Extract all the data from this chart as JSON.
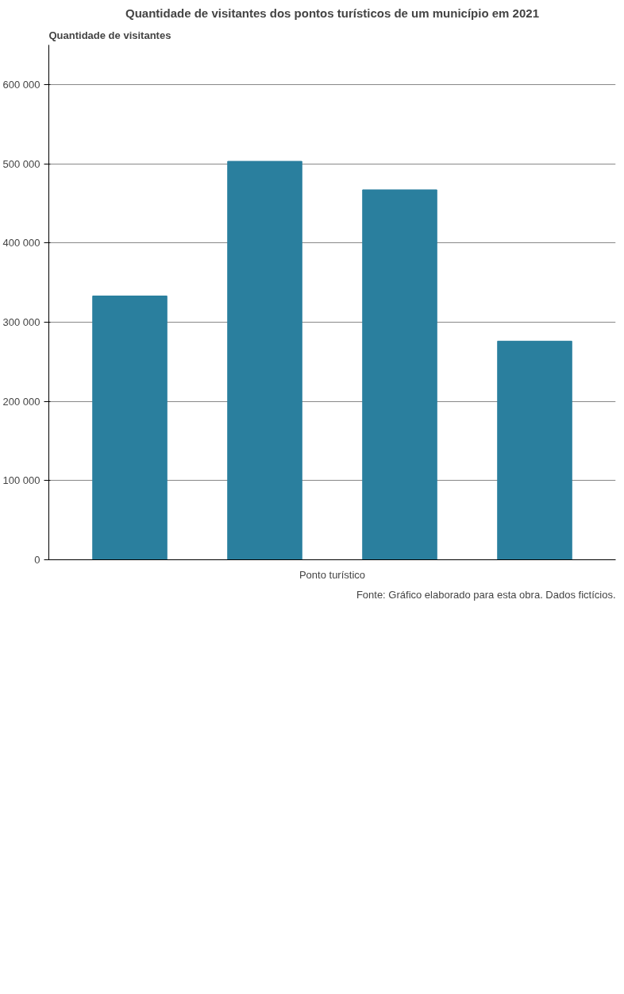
{
  "chart_data": {
    "type": "bar",
    "title": "Quantidade de visitantes dos pontos turísticos de um município em 2021",
    "ylabel": "Quantidade de visitantes",
    "xlabel": "Ponto turístico",
    "categories": [
      null,
      null,
      null,
      null
    ],
    "values": [
      333000,
      503000,
      467000,
      276000
    ],
    "color": "#2a7f9e",
    "ylim": [
      0,
      650000
    ],
    "yticks": [
      0,
      {
        "value": 100000,
        "label": "100 000"
      },
      {
        "value": 200000,
        "label": "200 000"
      },
      {
        "value": 300000,
        "label": "300 000"
      },
      {
        "value": 400000,
        "label": "400 000"
      },
      {
        "value": 500000,
        "label": "500 000"
      },
      {
        "value": 600000,
        "label": "600 000"
      }
    ],
    "grid": "y",
    "annotations": [
      "Fonte: Gráfico elaborado para esta obra. Dados fictícios."
    ]
  }
}
